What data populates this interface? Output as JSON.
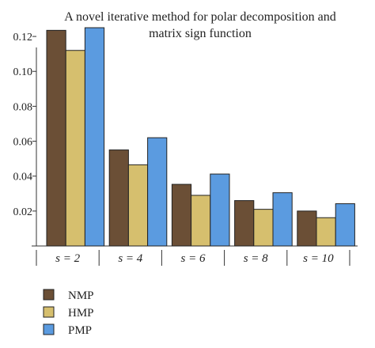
{
  "chart_data": {
    "type": "bar",
    "title_lines": [
      "A novel iterative method for polar decomposition and",
      "matrix sign function"
    ],
    "categories": [
      "s = 2",
      "s = 4",
      "s = 6",
      "s = 8",
      "s = 10"
    ],
    "series": [
      {
        "name": "NMP",
        "color": "#6b4f36",
        "values": [
          0.1235,
          0.055,
          0.0353,
          0.026,
          0.02
        ]
      },
      {
        "name": "HMP",
        "color": "#d6bf6e",
        "values": [
          0.112,
          0.0465,
          0.029,
          0.021,
          0.0162
        ]
      },
      {
        "name": "PMP",
        "color": "#5b9be0",
        "values": [
          0.125,
          0.062,
          0.0412,
          0.0305,
          0.0242
        ]
      }
    ],
    "y_ticks": [
      "0.02",
      "0.04",
      "0.06",
      "0.08",
      "0.10",
      "0.12"
    ],
    "ylim": [
      0,
      0.13
    ],
    "legend_position": "bottom-left",
    "grid": false
  }
}
